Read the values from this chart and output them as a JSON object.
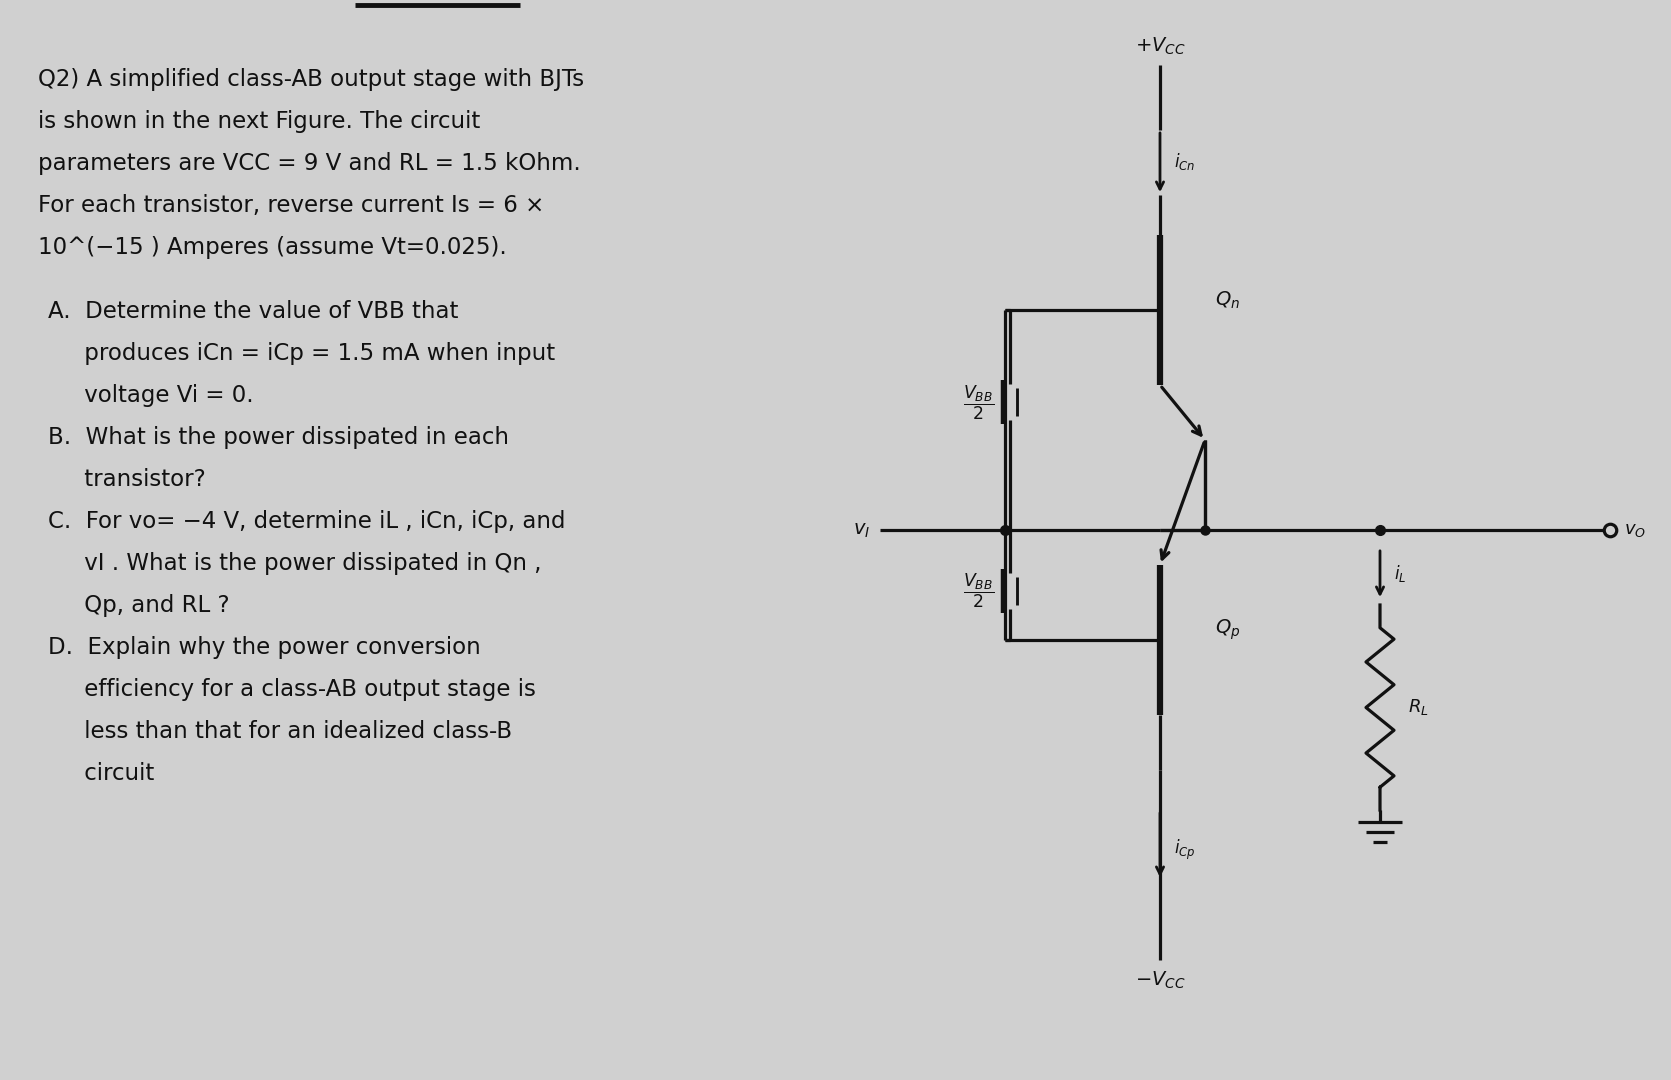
{
  "bg_color": "#d0d0d0",
  "text_color": "#111111",
  "line_color": "#111111",
  "main_lines": [
    "Q2) A simplified class-AB output stage with BJTs",
    "is shown in the next Figure. The circuit",
    "parameters are VCC = 9 V and RL = 1.5 kOhm.",
    "For each transistor, reverse current Is = 6 ×",
    "10^(−15 ) Amperes (assume Vt=0.025)."
  ],
  "sub_lines": [
    "A.  Determine the value of VBB that",
    "     produces iCn = iCp = 1.5 mA when input",
    "     voltage Vi = 0.",
    "B.  What is the power dissipated in each",
    "     transistor?",
    "C.  For vo= −4 V, determine iL , iCn, iCp, and",
    "     vI . What is the power dissipated in Qn ,",
    "     Qp, and RL ?",
    "D.  Explain why the power conversion",
    "     efficiency for a class-AB output stage is",
    "     less than that for an idealized class-B",
    "     circuit"
  ]
}
